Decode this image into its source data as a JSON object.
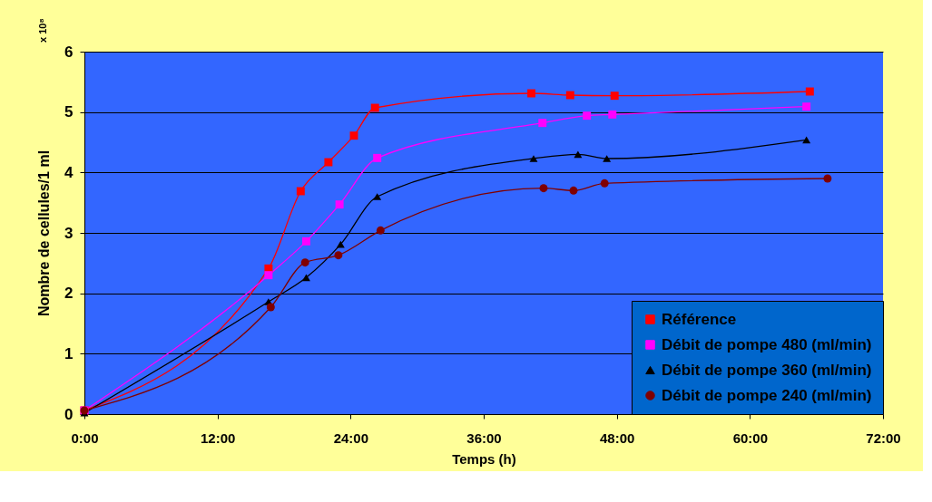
{
  "chart_data": {
    "type": "line",
    "xlabel": "Temps (h)",
    "ylabel": "Nombre de cellules/1 ml",
    "annotations": [
      "x 10⁸"
    ],
    "xlim": [
      0,
      72
    ],
    "xticks": [
      {
        "value": 0,
        "label": "0:00"
      },
      {
        "value": 12,
        "label": "12:00"
      },
      {
        "value": 24,
        "label": "24:00"
      },
      {
        "value": 36,
        "label": "36:00"
      },
      {
        "value": 48,
        "label": "48:00"
      },
      {
        "value": 60,
        "label": "60:00"
      },
      {
        "value": 72,
        "label": "72:00"
      }
    ],
    "ylim": [
      0,
      6
    ],
    "yticks": [
      0,
      1,
      2,
      3,
      4,
      5,
      6
    ],
    "grid": "y",
    "legend": "bottom right",
    "series": [
      {
        "name": "Référence",
        "color": "#ff0000",
        "marker": "square",
        "x": [
          0,
          16.6,
          19.5,
          22.0,
          24.3,
          26.2,
          40.3,
          43.8,
          47.8,
          65.4
        ],
        "values": [
          0.06,
          2.41,
          3.69,
          4.17,
          4.61,
          5.07,
          5.31,
          5.28,
          5.27,
          5.34
        ]
      },
      {
        "name": "Débit de pompe 480 (ml/min)",
        "color": "#ff00ff",
        "marker": "square",
        "x": [
          0,
          16.6,
          20.0,
          23.0,
          26.4,
          41.3,
          45.3,
          47.6,
          65.1
        ],
        "values": [
          0.06,
          2.3,
          2.86,
          3.47,
          4.24,
          4.82,
          4.94,
          4.96,
          5.09
        ]
      },
      {
        "name": "Débit de pompe 360 (ml/min)",
        "color": "#000000",
        "marker": "triangle",
        "x": [
          0,
          16.6,
          20.0,
          23.1,
          26.4,
          40.5,
          44.5,
          47.1,
          65.1
        ],
        "values": [
          0.02,
          1.86,
          2.26,
          2.81,
          3.6,
          4.23,
          4.3,
          4.23,
          4.54
        ]
      },
      {
        "name": "Débit de pompe 240 (ml/min)",
        "color": "#800000",
        "marker": "circle",
        "x": [
          0,
          16.8,
          19.9,
          22.9,
          26.7,
          41.4,
          44.1,
          46.9,
          67.0
        ],
        "values": [
          0.06,
          1.77,
          2.51,
          2.63,
          3.04,
          3.74,
          3.7,
          3.82,
          3.9
        ]
      }
    ]
  }
}
